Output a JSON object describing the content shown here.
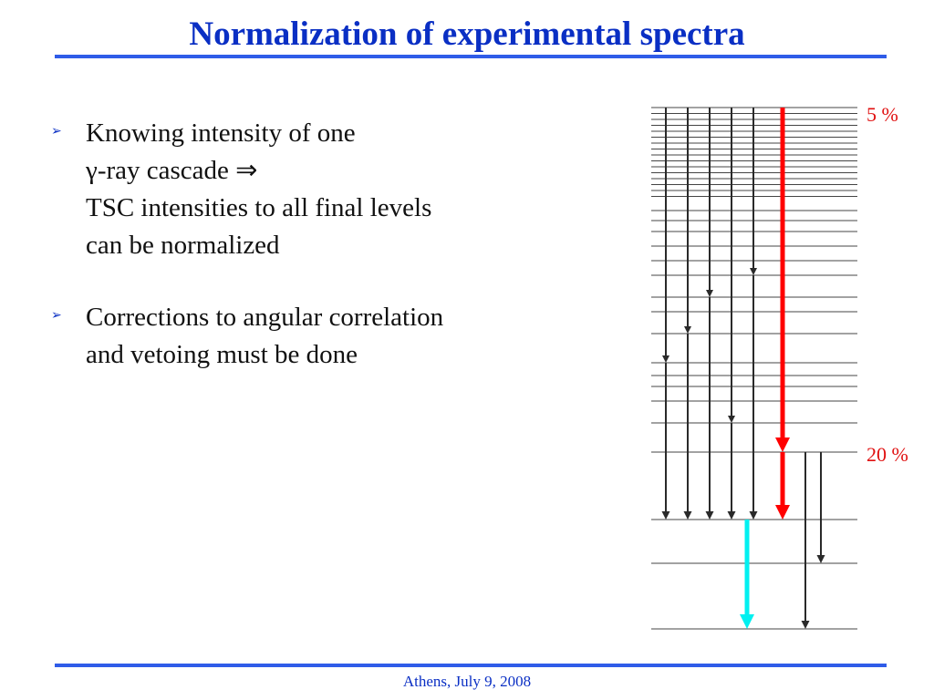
{
  "slide": {
    "title": "Normalization of experimental spectra",
    "bullet_marker": "➢",
    "bullets": [
      {
        "lines": [
          "Knowing intensity of one",
          "γ-ray cascade  ⇒",
          "TSC intensities to all final levels",
          "can be normalized"
        ]
      },
      {
        "lines": [
          "Corrections to angular correlation",
          "and vetoing must be done"
        ]
      }
    ],
    "footer": "Athens, July 9, 2008"
  },
  "level_scheme": {
    "labels": {
      "top": "5 %",
      "middle": "20 %"
    },
    "colors": {
      "title": "#0a2fc4",
      "rules": "#2f5ce8",
      "levels": "#444444",
      "gray_arrow": "#2a2a2a",
      "red_arrow": "#ff0000",
      "cyan_arrow": "#00f0f0",
      "percent_label": "#e01010"
    }
  }
}
